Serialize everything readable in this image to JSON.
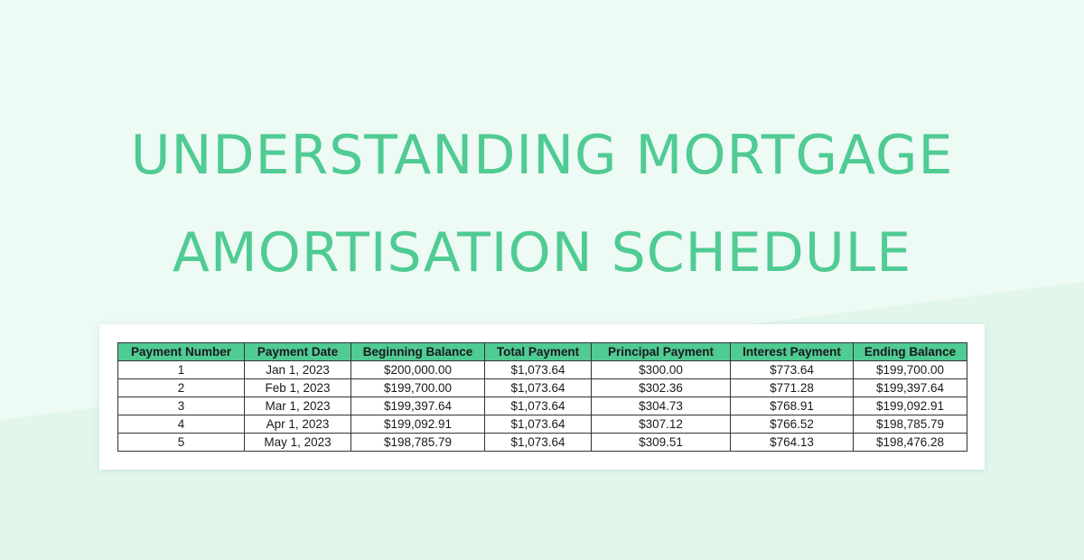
{
  "title": {
    "line1": "UNDERSTANDING MORTGAGE",
    "line2": "AMORTISATION SCHEDULE"
  },
  "colors": {
    "accent": "#4fcb93",
    "background": "#eefaf4",
    "card": "#ffffff"
  },
  "table": {
    "headers": [
      "Payment Number",
      "Payment Date",
      "Beginning Balance",
      "Total Payment",
      "Principal Payment",
      "Interest Payment",
      "Ending Balance"
    ],
    "rows": [
      [
        "1",
        "Jan 1, 2023",
        "$200,000.00",
        "$1,073.64",
        "$300.00",
        "$773.64",
        "$199,700.00"
      ],
      [
        "2",
        "Feb 1, 2023",
        "$199,700.00",
        "$1,073.64",
        "$302.36",
        "$771.28",
        "$199,397.64"
      ],
      [
        "3",
        "Mar 1, 2023",
        "$199,397.64",
        "$1,073.64",
        "$304.73",
        "$768.91",
        "$199,092.91"
      ],
      [
        "4",
        "Apr 1, 2023",
        "$199,092.91",
        "$1,073.64",
        "$307.12",
        "$766.52",
        "$198,785.79"
      ],
      [
        "5",
        "May 1, 2023",
        "$198,785.79",
        "$1,073.64",
        "$309.51",
        "$764.13",
        "$198,476.28"
      ]
    ]
  }
}
